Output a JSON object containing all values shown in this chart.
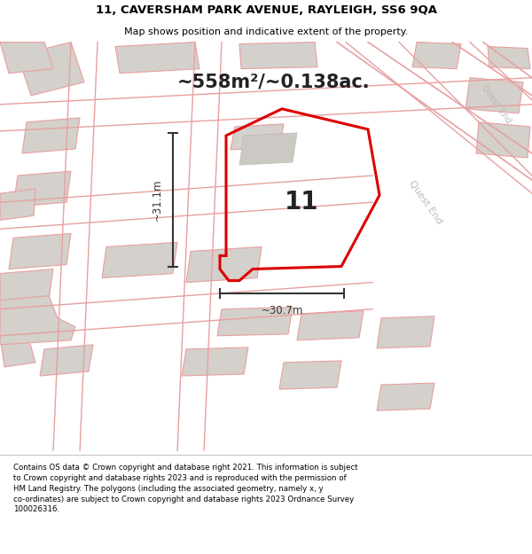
{
  "title_line1": "11, CAVERSHAM PARK AVENUE, RAYLEIGH, SS6 9QA",
  "title_line2": "Map shows position and indicative extent of the property.",
  "area_text": "~558m²/~0.138ac.",
  "label_number": "11",
  "dim_horizontal": "~30.7m",
  "dim_vertical": "~31.1m",
  "road_label": "Quest End",
  "footer_text": "Contains OS data © Crown copyright and database right 2021. This information is subject to Crown copyright and database rights 2023 and is reproduced with the permission of HM Land Registry. The polygons (including the associated geometry, namely x, y co-ordinates) are subject to Crown copyright and database rights 2023 Ordnance Survey 100026316.",
  "bg_color": "#f2f0ed",
  "map_bg": "#f2f0ed",
  "plot_outline_color": "#dd0000",
  "building_fill": "#d4d0cb",
  "building_edge": "#e8a0a0",
  "street_line_color": "#e8a0a0",
  "road_outline_color": "#e8a0a0",
  "road_fill": "#e8e5e1",
  "footer_bg": "#ffffff",
  "title_fontsize": 9.5,
  "subtitle_fontsize": 8,
  "area_fontsize": 15,
  "label_fontsize": 20,
  "dim_fontsize": 8.5,
  "road_label_fontsize": 8,
  "footer_fontsize": 6.2
}
